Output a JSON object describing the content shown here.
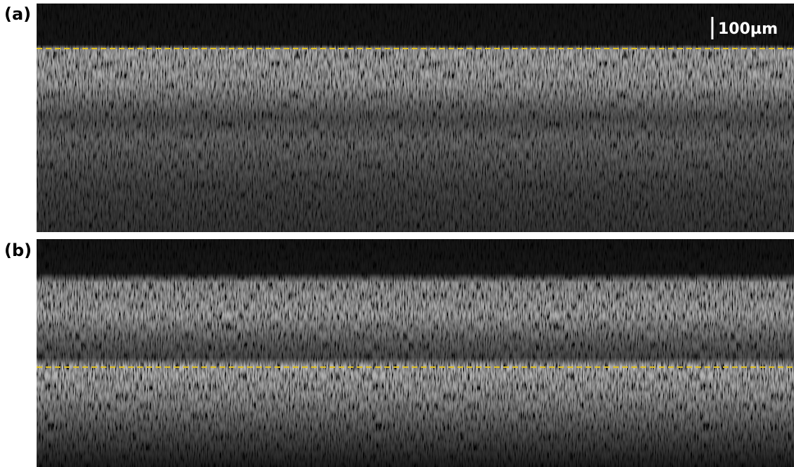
{
  "panels": [
    {
      "label": "(a)"
    },
    {
      "label": "(b)"
    }
  ],
  "scale_bar": {
    "label": "100µm"
  }
}
